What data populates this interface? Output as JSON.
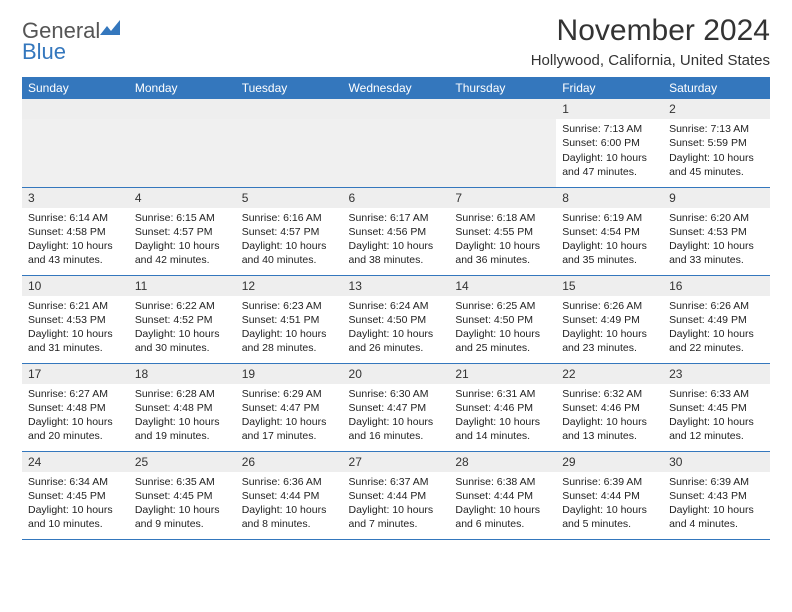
{
  "brand": {
    "word1": "General",
    "word2": "Blue"
  },
  "title": "November 2024",
  "location": "Hollywood, California, United States",
  "colors": {
    "accent": "#3477bd",
    "header_bg": "#3477bd",
    "header_text": "#ffffff",
    "daynum_bg": "#eeeeee",
    "border": "#3477bd",
    "text": "#333333",
    "bg": "#ffffff"
  },
  "day_headers": [
    "Sunday",
    "Monday",
    "Tuesday",
    "Wednesday",
    "Thursday",
    "Friday",
    "Saturday"
  ],
  "weeks": [
    [
      null,
      null,
      null,
      null,
      null,
      {
        "n": "1",
        "sunrise": "7:13 AM",
        "sunset": "6:00 PM",
        "daylight": "10 hours and 47 minutes."
      },
      {
        "n": "2",
        "sunrise": "7:13 AM",
        "sunset": "5:59 PM",
        "daylight": "10 hours and 45 minutes."
      }
    ],
    [
      {
        "n": "3",
        "sunrise": "6:14 AM",
        "sunset": "4:58 PM",
        "daylight": "10 hours and 43 minutes."
      },
      {
        "n": "4",
        "sunrise": "6:15 AM",
        "sunset": "4:57 PM",
        "daylight": "10 hours and 42 minutes."
      },
      {
        "n": "5",
        "sunrise": "6:16 AM",
        "sunset": "4:57 PM",
        "daylight": "10 hours and 40 minutes."
      },
      {
        "n": "6",
        "sunrise": "6:17 AM",
        "sunset": "4:56 PM",
        "daylight": "10 hours and 38 minutes."
      },
      {
        "n": "7",
        "sunrise": "6:18 AM",
        "sunset": "4:55 PM",
        "daylight": "10 hours and 36 minutes."
      },
      {
        "n": "8",
        "sunrise": "6:19 AM",
        "sunset": "4:54 PM",
        "daylight": "10 hours and 35 minutes."
      },
      {
        "n": "9",
        "sunrise": "6:20 AM",
        "sunset": "4:53 PM",
        "daylight": "10 hours and 33 minutes."
      }
    ],
    [
      {
        "n": "10",
        "sunrise": "6:21 AM",
        "sunset": "4:53 PM",
        "daylight": "10 hours and 31 minutes."
      },
      {
        "n": "11",
        "sunrise": "6:22 AM",
        "sunset": "4:52 PM",
        "daylight": "10 hours and 30 minutes."
      },
      {
        "n": "12",
        "sunrise": "6:23 AM",
        "sunset": "4:51 PM",
        "daylight": "10 hours and 28 minutes."
      },
      {
        "n": "13",
        "sunrise": "6:24 AM",
        "sunset": "4:50 PM",
        "daylight": "10 hours and 26 minutes."
      },
      {
        "n": "14",
        "sunrise": "6:25 AM",
        "sunset": "4:50 PM",
        "daylight": "10 hours and 25 minutes."
      },
      {
        "n": "15",
        "sunrise": "6:26 AM",
        "sunset": "4:49 PM",
        "daylight": "10 hours and 23 minutes."
      },
      {
        "n": "16",
        "sunrise": "6:26 AM",
        "sunset": "4:49 PM",
        "daylight": "10 hours and 22 minutes."
      }
    ],
    [
      {
        "n": "17",
        "sunrise": "6:27 AM",
        "sunset": "4:48 PM",
        "daylight": "10 hours and 20 minutes."
      },
      {
        "n": "18",
        "sunrise": "6:28 AM",
        "sunset": "4:48 PM",
        "daylight": "10 hours and 19 minutes."
      },
      {
        "n": "19",
        "sunrise": "6:29 AM",
        "sunset": "4:47 PM",
        "daylight": "10 hours and 17 minutes."
      },
      {
        "n": "20",
        "sunrise": "6:30 AM",
        "sunset": "4:47 PM",
        "daylight": "10 hours and 16 minutes."
      },
      {
        "n": "21",
        "sunrise": "6:31 AM",
        "sunset": "4:46 PM",
        "daylight": "10 hours and 14 minutes."
      },
      {
        "n": "22",
        "sunrise": "6:32 AM",
        "sunset": "4:46 PM",
        "daylight": "10 hours and 13 minutes."
      },
      {
        "n": "23",
        "sunrise": "6:33 AM",
        "sunset": "4:45 PM",
        "daylight": "10 hours and 12 minutes."
      }
    ],
    [
      {
        "n": "24",
        "sunrise": "6:34 AM",
        "sunset": "4:45 PM",
        "daylight": "10 hours and 10 minutes."
      },
      {
        "n": "25",
        "sunrise": "6:35 AM",
        "sunset": "4:45 PM",
        "daylight": "10 hours and 9 minutes."
      },
      {
        "n": "26",
        "sunrise": "6:36 AM",
        "sunset": "4:44 PM",
        "daylight": "10 hours and 8 minutes."
      },
      {
        "n": "27",
        "sunrise": "6:37 AM",
        "sunset": "4:44 PM",
        "daylight": "10 hours and 7 minutes."
      },
      {
        "n": "28",
        "sunrise": "6:38 AM",
        "sunset": "4:44 PM",
        "daylight": "10 hours and 6 minutes."
      },
      {
        "n": "29",
        "sunrise": "6:39 AM",
        "sunset": "4:44 PM",
        "daylight": "10 hours and 5 minutes."
      },
      {
        "n": "30",
        "sunrise": "6:39 AM",
        "sunset": "4:43 PM",
        "daylight": "10 hours and 4 minutes."
      }
    ]
  ],
  "labels": {
    "sunrise": "Sunrise: ",
    "sunset": "Sunset: ",
    "daylight": "Daylight: "
  }
}
